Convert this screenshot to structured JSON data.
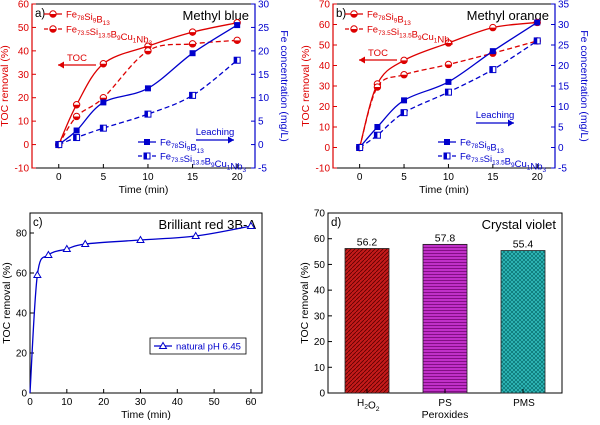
{
  "chart_data": [
    {
      "panel": "a)",
      "title": "Methyl blue",
      "type": "line",
      "xlabel": "Time (min)",
      "ylabel": "TOC removal (%)",
      "y2label": "Fe concentration (mg/L)",
      "xlim": [
        -3,
        22
      ],
      "ylim": [
        -10,
        60
      ],
      "y2lim": [
        -5,
        30
      ],
      "xticks": [
        0,
        5,
        10,
        15,
        20
      ],
      "yticks": [
        -10,
        0,
        10,
        20,
        30,
        40,
        50,
        60
      ],
      "y2ticks": [
        -5,
        0,
        5,
        10,
        15,
        20,
        25,
        30
      ],
      "axis_colors": {
        "left": "#dd0000",
        "right": "#0000cc"
      },
      "arrows": [
        {
          "label": "TOC",
          "direction": "left",
          "color": "#dd0000"
        },
        {
          "label": "Leaching",
          "direction": "right",
          "color": "#0000cc"
        }
      ],
      "series": [
        {
          "name": "Fe78Si9B13",
          "axis": "left",
          "color": "#dd0000",
          "dashed": false,
          "marker": "half-circle",
          "x": [
            0,
            2,
            5,
            10,
            15,
            20
          ],
          "y": [
            0,
            17,
            34.5,
            42,
            48,
            52
          ]
        },
        {
          "name": "Fe73.5Si13.5B9Cu1Nb3",
          "axis": "left",
          "color": "#dd0000",
          "dashed": true,
          "marker": "half-circle",
          "x": [
            0,
            2,
            5,
            10,
            15,
            20
          ],
          "y": [
            0,
            12,
            20,
            40,
            43,
            44.5
          ]
        },
        {
          "name": "Fe78Si9B13",
          "axis": "right",
          "color": "#0000cc",
          "dashed": false,
          "marker": "square",
          "x": [
            0,
            2,
            5,
            10,
            15,
            20
          ],
          "y": [
            0,
            3,
            9,
            12,
            19.5,
            25.5
          ]
        },
        {
          "name": "Fe73.5Si13.5B9Cu1Nb3",
          "axis": "right",
          "color": "#0000cc",
          "dashed": true,
          "marker": "half-square",
          "x": [
            0,
            2,
            5,
            10,
            15,
            20
          ],
          "y": [
            0,
            1.5,
            3.5,
            6.5,
            10.5,
            18
          ]
        }
      ]
    },
    {
      "panel": "b)",
      "title": "Methyl orange",
      "type": "line",
      "xlabel": "Time (min)",
      "ylabel": "TOC removal (%)",
      "y2label": "Fe concentration (mg/L)",
      "xlim": [
        -3,
        22
      ],
      "ylim": [
        -10,
        70
      ],
      "y2lim": [
        -5,
        35
      ],
      "xticks": [
        0,
        5,
        10,
        15,
        20
      ],
      "yticks": [
        -10,
        0,
        10,
        20,
        30,
        40,
        50,
        60,
        70
      ],
      "y2ticks": [
        -5,
        0,
        5,
        10,
        15,
        20,
        25,
        30,
        35
      ],
      "axis_colors": {
        "left": "#dd0000",
        "right": "#0000cc"
      },
      "arrows": [
        {
          "label": "TOC",
          "direction": "left",
          "color": "#dd0000"
        },
        {
          "label": "Leaching",
          "direction": "right",
          "color": "#0000cc"
        }
      ],
      "series": [
        {
          "name": "Fe78Si9B13",
          "axis": "left",
          "color": "#dd0000",
          "dashed": false,
          "marker": "half-circle",
          "x": [
            0,
            2,
            5,
            10,
            15,
            20
          ],
          "y": [
            0,
            31,
            42.5,
            51,
            58.5,
            61
          ]
        },
        {
          "name": "Fe73.5Si13.5B9Cu1Nb3",
          "axis": "left",
          "color": "#dd0000",
          "dashed": true,
          "marker": "half-circle",
          "x": [
            0,
            2,
            5,
            10,
            15,
            20
          ],
          "y": [
            0,
            29.5,
            35.5,
            40.5,
            46,
            52
          ]
        },
        {
          "name": "Fe78Si9B13",
          "axis": "right",
          "color": "#0000cc",
          "dashed": false,
          "marker": "square",
          "x": [
            0,
            2,
            5,
            10,
            15,
            20
          ],
          "y": [
            0,
            5,
            11.5,
            16,
            23.5,
            30.5
          ]
        },
        {
          "name": "Fe73.5Si13.5B9Cu1Nb3",
          "axis": "right",
          "color": "#0000cc",
          "dashed": true,
          "marker": "half-square",
          "x": [
            0,
            2,
            5,
            10,
            15,
            20
          ],
          "y": [
            0,
            3,
            8.5,
            13.5,
            19,
            26
          ]
        }
      ]
    },
    {
      "panel": "c)",
      "title": "Brilliant red 3B-A",
      "type": "line",
      "xlabel": "Time (min)",
      "ylabel": "TOC removal (%)",
      "xlim": [
        0,
        63
      ],
      "ylim": [
        0,
        90
      ],
      "xticks": [
        0,
        10,
        20,
        30,
        40,
        50,
        60
      ],
      "yticks": [
        0,
        20,
        40,
        60,
        80
      ],
      "series": [
        {
          "name": "natural pH 6.45",
          "color": "#0000cc",
          "marker": "triangle",
          "x": [
            0,
            2,
            5,
            10,
            15,
            30,
            45,
            60
          ],
          "y": [
            0,
            59,
            69,
            72,
            74.5,
            76.5,
            78.5,
            83.5
          ]
        }
      ]
    },
    {
      "panel": "d)",
      "title": "Crystal violet",
      "type": "bar",
      "xlabel": "Peroxides",
      "ylabel": "TOC removal (%)",
      "ylim": [
        0,
        70
      ],
      "yticks": [
        0,
        10,
        20,
        30,
        40,
        50,
        60,
        70
      ],
      "categories": [
        "H2O2",
        "PS",
        "PMS"
      ],
      "values": [
        56.2,
        57.8,
        55.4
      ],
      "value_labels": [
        "56.2",
        "57.8",
        "55.4"
      ],
      "bar_colors": [
        "#c41a1a",
        "#b020b8",
        "#20a8a8"
      ]
    }
  ]
}
